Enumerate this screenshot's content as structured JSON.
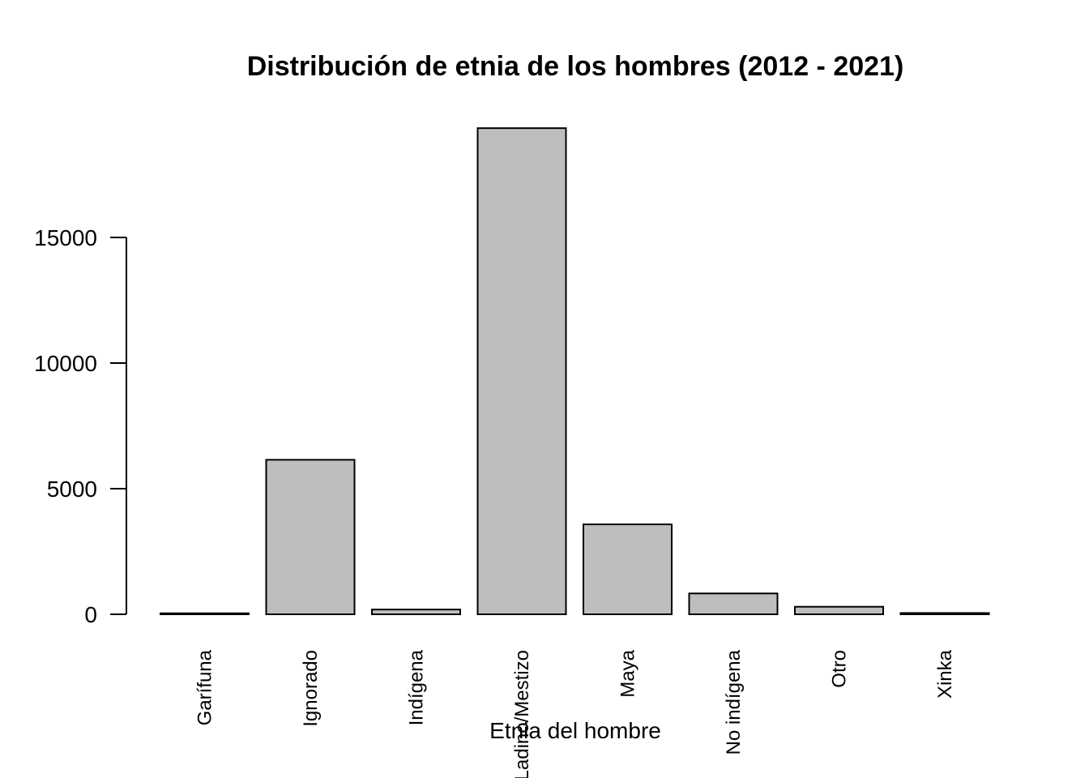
{
  "chart_data": {
    "type": "bar",
    "title": "Distribución de etnia de los hombres (2012 - 2021)",
    "xlabel": "Etnia del hombre",
    "ylabel": "",
    "categories": [
      "Garífuna",
      "Ignorado",
      "Indígena",
      "Ladino/Mestizo",
      "Maya",
      "No indígena",
      "Otro",
      "Xinka"
    ],
    "values": [
      40,
      6150,
      190,
      19350,
      3580,
      830,
      300,
      50
    ],
    "ylim": [
      0,
      19350
    ],
    "yticks": [
      0,
      5000,
      10000,
      15000
    ],
    "ytick_labels": [
      "0",
      "5000",
      "10000",
      "15000"
    ],
    "grid": false,
    "bar_fill": "#bebebe",
    "bar_stroke": "#000000"
  }
}
